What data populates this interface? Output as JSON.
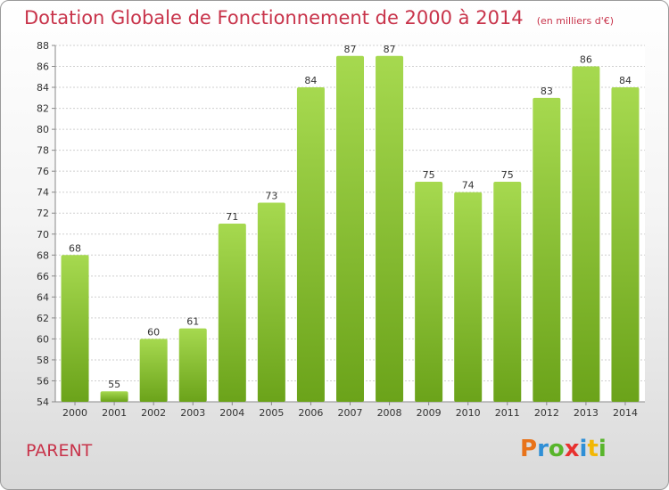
{
  "title": "Dotation Globale de Fonctionnement de 2000 à 2014",
  "unit_note": "(en milliers d'€)",
  "commune": "PARENT",
  "logo": {
    "letters": [
      "P",
      "r",
      "o",
      "x",
      "i",
      "t",
      "i"
    ],
    "colors": [
      "#e8731a",
      "#2f8fd6",
      "#58b52b",
      "#e8312f",
      "#2f8fd6",
      "#f2b705",
      "#58b52b"
    ]
  },
  "colors": {
    "title": "#c8334a",
    "bar_light": "#a6d94f",
    "bar_dark": "#6ba31a",
    "axis": "#888888",
    "grid": "#cfcfcf"
  },
  "chart_data": {
    "type": "bar",
    "categories": [
      "2000",
      "2001",
      "2002",
      "2003",
      "2004",
      "2005",
      "2006",
      "2007",
      "2008",
      "2009",
      "2010",
      "2011",
      "2012",
      "2013",
      "2014"
    ],
    "values": [
      68,
      55,
      60,
      61,
      71,
      73,
      84,
      87,
      87,
      75,
      74,
      75,
      83,
      86,
      84
    ],
    "ylim": [
      54,
      88
    ],
    "yticks": [
      54,
      56,
      58,
      60,
      62,
      64,
      66,
      68,
      70,
      72,
      74,
      76,
      78,
      80,
      82,
      84,
      86,
      88
    ],
    "grid": true
  }
}
